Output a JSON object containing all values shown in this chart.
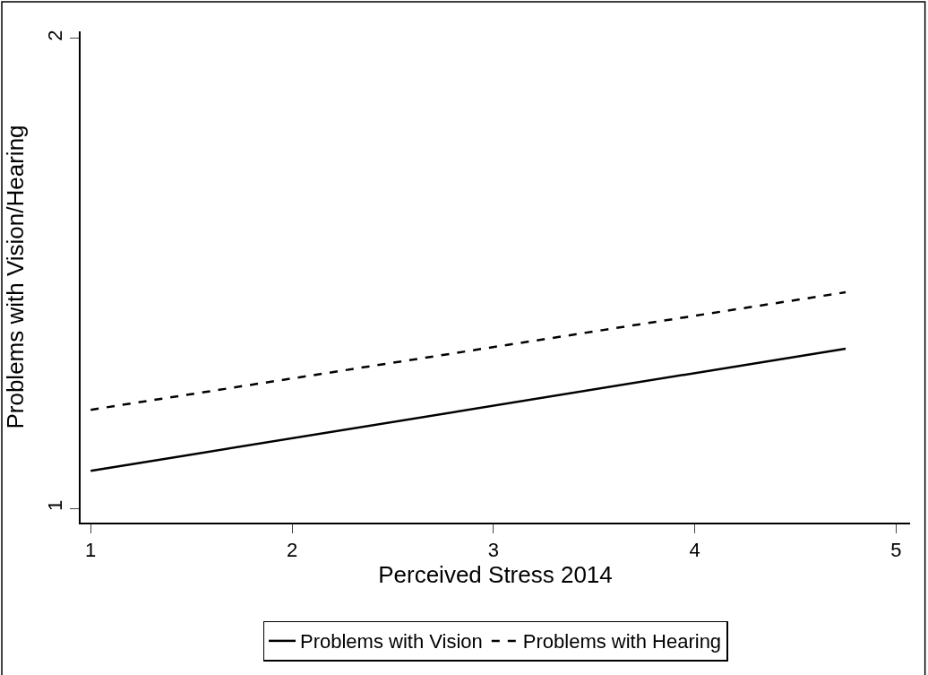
{
  "chart_data": {
    "type": "line",
    "xlabel": "Perceived Stress 2014",
    "ylabel": "Problems with Vision/Hearing",
    "x": [
      1,
      4.75
    ],
    "series": [
      {
        "name": "Problems with Vision",
        "color": "#000000",
        "values": [
          1.08,
          1.34
        ],
        "line_style": "solid"
      },
      {
        "name": "Problems with Hearing",
        "color": "#000000",
        "values": [
          1.21,
          1.46
        ],
        "line_style": "dashed"
      }
    ],
    "xlim": [
      0.95,
      5.07
    ],
    "ylim": [
      0.97,
      2.015
    ],
    "xticks": [
      1,
      2,
      3,
      4,
      5
    ],
    "yticks": [
      1,
      2
    ],
    "legend": "bottom"
  }
}
